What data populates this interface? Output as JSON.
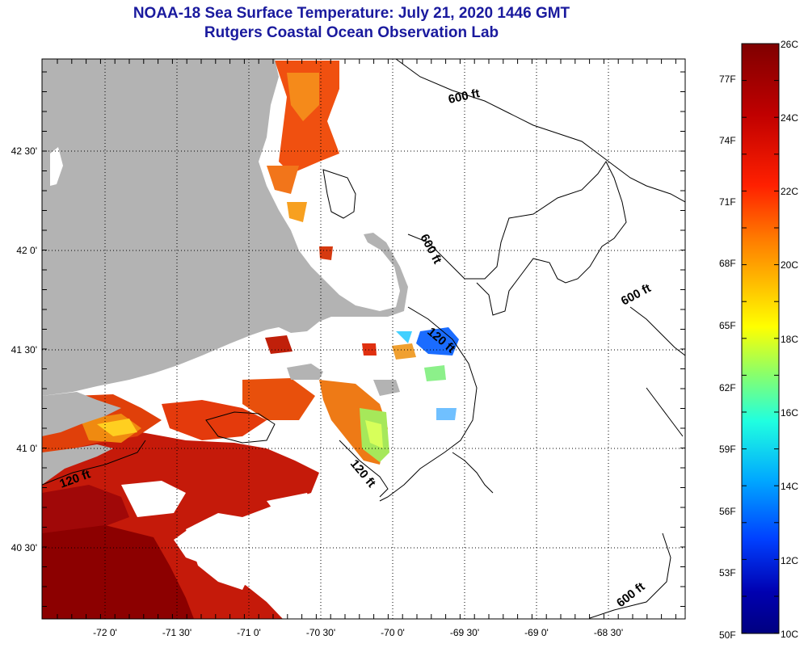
{
  "title": {
    "line1": "NOAA-18 Sea Surface Temperature:  July 21, 2020 1446 GMT",
    "line2": "Rutgers Coastal Ocean Observation Lab"
  },
  "map": {
    "x_ticks": [
      {
        "lon": -72.0,
        "label": "-72 0'"
      },
      {
        "lon": -71.5,
        "label": "-71 30'"
      },
      {
        "lon": -71.0,
        "label": "-71 0'"
      },
      {
        "lon": -70.5,
        "label": "-70 30'"
      },
      {
        "lon": -70.0,
        "label": "-70 0'"
      },
      {
        "lon": -69.5,
        "label": "-69 30'"
      },
      {
        "lon": -69.0,
        "label": "-69 0'"
      },
      {
        "lon": -68.5,
        "label": "-68 30'"
      }
    ],
    "y_ticks": [
      {
        "lat": 42.5,
        "label": "42 30'"
      },
      {
        "lat": 42.0,
        "label": "42 0'"
      },
      {
        "lat": 41.5,
        "label": "41 30'"
      },
      {
        "lat": 41.0,
        "label": "41 0'"
      },
      {
        "lat": 40.5,
        "label": "40 30'"
      }
    ],
    "contour_labels": [
      {
        "id": "c600-north",
        "text": "600 ft"
      },
      {
        "id": "c600-cape",
        "text": "600 ft"
      },
      {
        "id": "c600-east",
        "text": "600 ft"
      },
      {
        "id": "c600-south",
        "text": "600 ft"
      },
      {
        "id": "c120-cape",
        "text": "120 ft"
      },
      {
        "id": "c120-west",
        "text": "120 ft"
      },
      {
        "id": "c120-south",
        "text": "120 ft"
      }
    ],
    "colors": {
      "land": "#b3b3b3",
      "ocean_nodata": "#ffffff",
      "grid": "#000000"
    }
  },
  "colorbar": {
    "celsius_labels": [
      "26C",
      "24C",
      "22C",
      "20C",
      "18C",
      "16C",
      "14C",
      "12C",
      "10C"
    ],
    "fahrenheit_labels": [
      "77F",
      "74F",
      "71F",
      "68F",
      "65F",
      "62F",
      "59F",
      "56F",
      "53F",
      "50F"
    ],
    "range_c": [
      10,
      26
    ],
    "range_f": [
      50,
      78.8
    ],
    "colors": [
      "#7f0000",
      "#c00000",
      "#ff2000",
      "#ff7a00",
      "#ffc000",
      "#ffff00",
      "#8aff6a",
      "#20ffe0",
      "#00a8ff",
      "#0040ff",
      "#0000b0",
      "#000080"
    ]
  }
}
